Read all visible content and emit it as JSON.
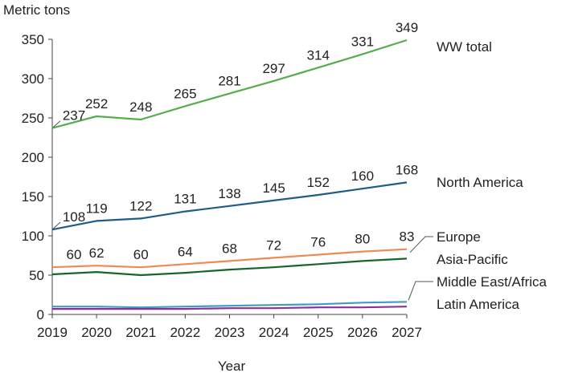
{
  "chart_data": {
    "type": "line",
    "title": "",
    "ylabel": "Metric tons",
    "xlabel": "Year",
    "ylim": [
      0,
      350
    ],
    "y_ticks": [
      0,
      50,
      100,
      150,
      200,
      250,
      300,
      350
    ],
    "grid": false,
    "categories": [
      "2019",
      "2020",
      "2021",
      "2022",
      "2023",
      "2024",
      "2025",
      "2026",
      "2027"
    ],
    "series": [
      {
        "name": "WW total",
        "color": "#55ad4c",
        "values": [
          237,
          252,
          248,
          265,
          281,
          297,
          314,
          331,
          349
        ],
        "data_labels": true
      },
      {
        "name": "North America",
        "color": "#1e5d86",
        "values": [
          108,
          119,
          122,
          131,
          138,
          145,
          152,
          160,
          168
        ],
        "data_labels": true
      },
      {
        "name": "Europe",
        "color": "#ef8a55",
        "values": [
          60,
          62,
          60,
          64,
          68,
          72,
          76,
          80,
          83
        ],
        "data_labels": true
      },
      {
        "name": "Asia-Pacific",
        "color": "#17652b",
        "values": [
          51,
          54,
          50,
          53,
          57,
          60,
          64,
          68,
          71
        ],
        "data_labels": false
      },
      {
        "name": "Middle East/Africa",
        "color": "#3e9ccb",
        "values": [
          10,
          10,
          9,
          10,
          11,
          12,
          13,
          15,
          16
        ],
        "data_labels": false
      },
      {
        "name": "Latin America",
        "color": "#8e2f97",
        "values": [
          7,
          7,
          7,
          7,
          8,
          8,
          9,
          9,
          10
        ],
        "data_labels": false
      }
    ]
  }
}
